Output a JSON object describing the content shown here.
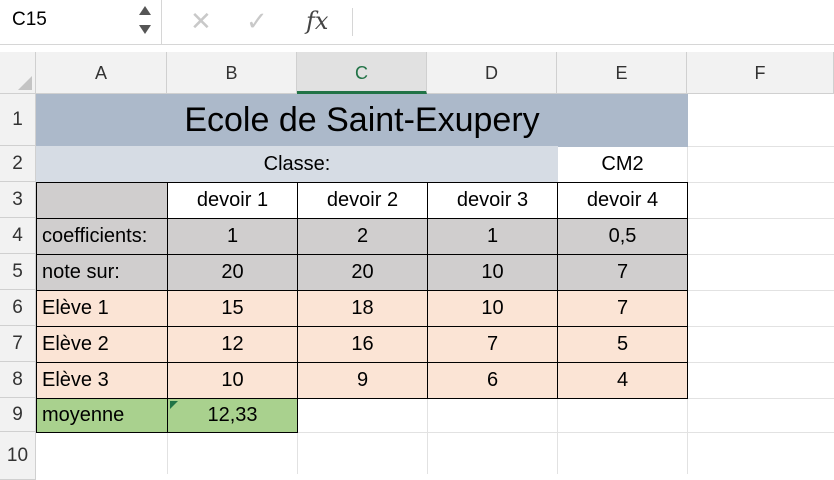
{
  "name_box": {
    "value": "C15"
  },
  "formula_bar": {
    "cancel_icon": "✕",
    "enter_icon": "✓",
    "fx_label": "fx",
    "formula": ""
  },
  "columns": [
    "A",
    "B",
    "C",
    "D",
    "E",
    "F"
  ],
  "selected_column": "C",
  "rows": [
    "1",
    "2",
    "3",
    "4",
    "5",
    "6",
    "7",
    "8",
    "9",
    "10"
  ],
  "sheet": {
    "title": "Ecole de Saint-Exupery",
    "classe_label": "Classe:",
    "classe_value": "CM2",
    "headers": [
      "devoir 1",
      "devoir 2",
      "devoir 3",
      "devoir 4"
    ],
    "coefficients": {
      "label": "coefficients:",
      "values": [
        "1",
        "2",
        "1",
        "0,5"
      ]
    },
    "note_sur": {
      "label": "note sur:",
      "values": [
        "20",
        "20",
        "10",
        "7"
      ]
    },
    "students": [
      {
        "name": "Elève 1",
        "grades": [
          "15",
          "18",
          "10",
          "7"
        ]
      },
      {
        "name": "Elève 2",
        "grades": [
          "12",
          "16",
          "7",
          "5"
        ]
      },
      {
        "name": "Elève 3",
        "grades": [
          "10",
          "9",
          "6",
          "4"
        ]
      }
    ],
    "moyenne": {
      "label": "moyenne",
      "value": "12,33"
    }
  },
  "colors": {
    "title_fill": "#acb9ca",
    "classe_fill": "#d6dce4",
    "coeff_fill": "#d0cece",
    "student_fill": "#fbe4d5",
    "moyenne_fill": "#a9d18e",
    "selection_accent": "#217346"
  }
}
